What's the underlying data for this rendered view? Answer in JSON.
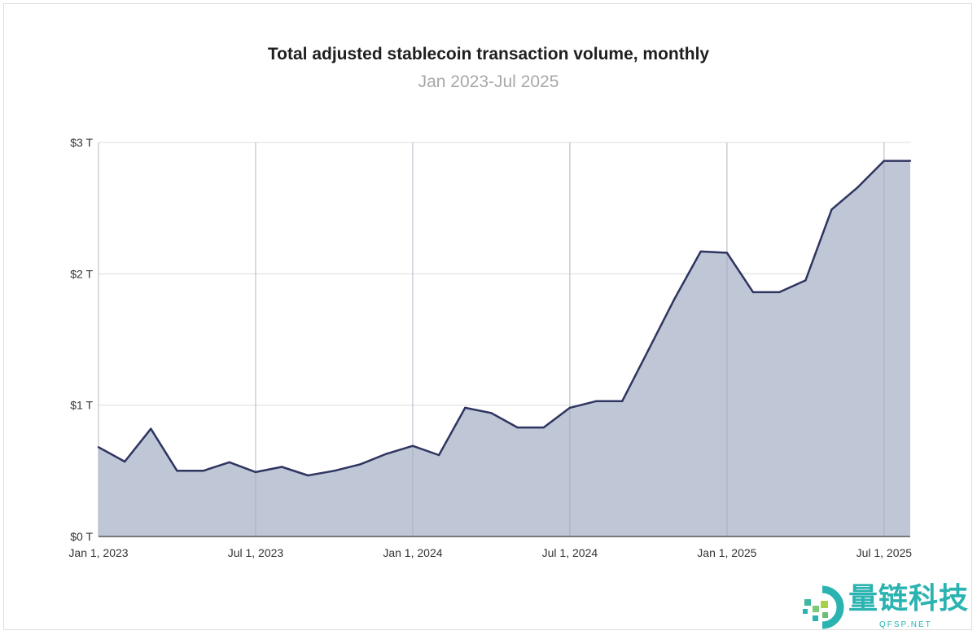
{
  "chart_data": {
    "type": "area",
    "title": "Total adjusted stablecoin transaction volume, monthly",
    "subtitle": "Jan 2023-Jul 2025",
    "xlabel": "",
    "ylabel": "",
    "x": [
      "2023-01",
      "2023-02",
      "2023-03",
      "2023-04",
      "2023-05",
      "2023-06",
      "2023-07",
      "2023-08",
      "2023-09",
      "2023-10",
      "2023-11",
      "2023-12",
      "2024-01",
      "2024-02",
      "2024-03",
      "2024-04",
      "2024-05",
      "2024-06",
      "2024-07",
      "2024-08",
      "2024-09",
      "2024-10",
      "2024-11",
      "2024-12",
      "2025-01",
      "2025-02",
      "2025-03",
      "2025-04",
      "2025-05",
      "2025-06",
      "2025-07",
      "2025-08"
    ],
    "values": [
      0.68,
      0.57,
      0.82,
      0.5,
      0.5,
      0.565,
      0.49,
      0.53,
      0.465,
      0.5,
      0.55,
      0.63,
      0.69,
      0.62,
      0.98,
      0.94,
      0.83,
      0.83,
      0.98,
      1.03,
      1.03,
      1.42,
      1.81,
      2.17,
      2.16,
      1.86,
      1.86,
      1.95,
      2.49,
      2.66,
      2.86,
      2.86
    ],
    "unit": "trillion USD",
    "ylim": [
      0,
      3
    ],
    "xlim": [
      "2023-01",
      "2025-08"
    ],
    "yticks": [
      {
        "value": 0,
        "label": "$0 T"
      },
      {
        "value": 1,
        "label": "$1 T"
      },
      {
        "value": 2,
        "label": "$2 T"
      },
      {
        "value": 3,
        "label": "$3 T"
      }
    ],
    "xticks": [
      {
        "value": "2023-01",
        "label": "Jan 1, 2023"
      },
      {
        "value": "2023-07",
        "label": "Jul 1, 2023"
      },
      {
        "value": "2024-01",
        "label": "Jan 1, 2024"
      },
      {
        "value": "2024-07",
        "label": "Jul 1, 2024"
      },
      {
        "value": "2025-01",
        "label": "Jan 1, 2025"
      },
      {
        "value": "2025-07",
        "label": "Jul 1, 2025"
      }
    ],
    "grid": true,
    "legend": "none",
    "colors": {
      "line": "#2e3560",
      "fill": "#bcc3d4",
      "grid": "#dcdcdc"
    }
  },
  "watermark": {
    "text": "量链科技",
    "sub": "QFSP.NET"
  }
}
